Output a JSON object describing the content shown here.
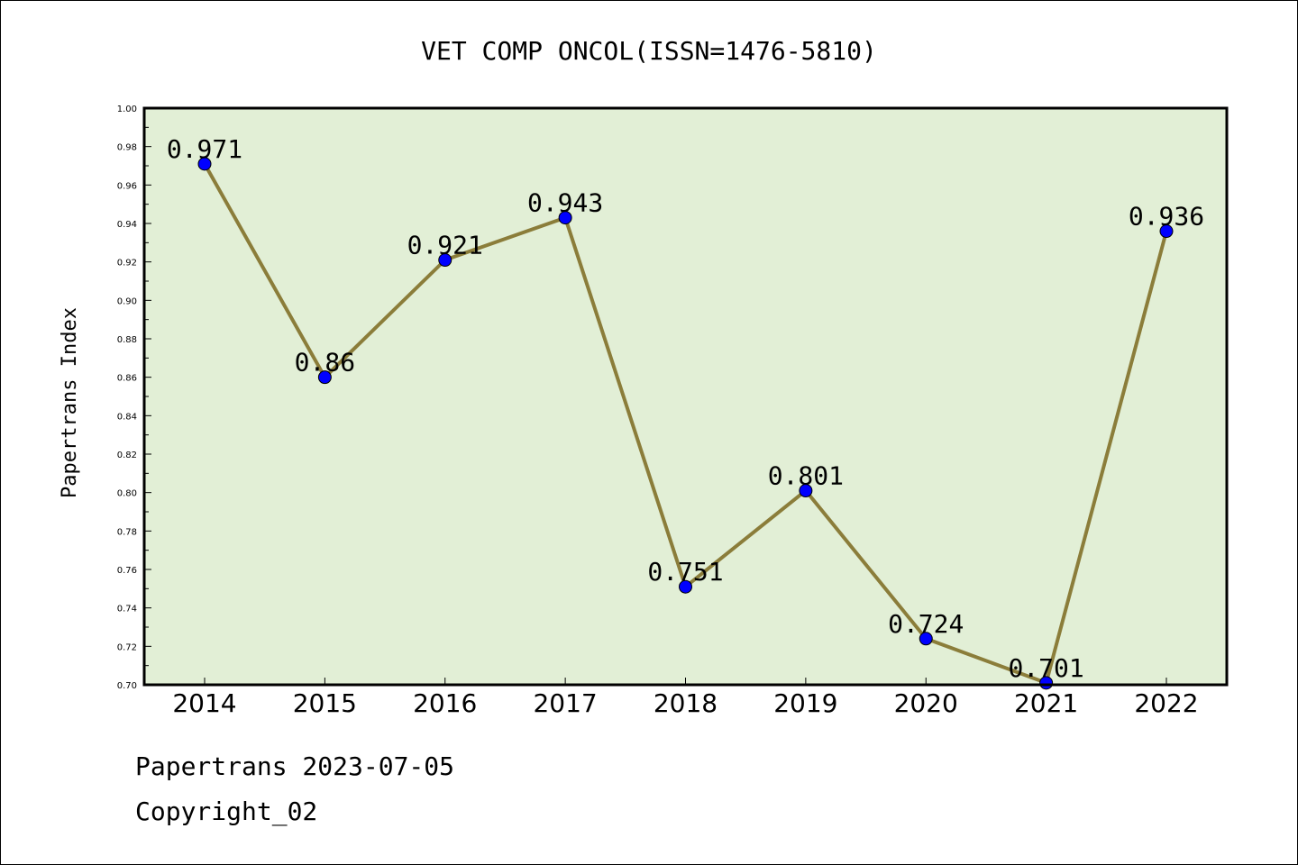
{
  "chart_data": {
    "type": "line",
    "title": "VET COMP ONCOL(ISSN=1476-5810)",
    "xlabel": "",
    "ylabel": "Papertrans Index",
    "categories": [
      "2014",
      "2015",
      "2016",
      "2017",
      "2018",
      "2019",
      "2020",
      "2021",
      "2022"
    ],
    "values": [
      0.971,
      0.86,
      0.921,
      0.943,
      0.751,
      0.801,
      0.724,
      0.701,
      0.936
    ],
    "data_labels": [
      "0.971",
      "0.86",
      "0.921",
      "0.943",
      "0.751",
      "0.801",
      "0.724",
      "0.701",
      "0.936"
    ],
    "ylim": [
      0.7,
      1.0
    ],
    "yticks": [
      "0.70",
      "0.72",
      "0.74",
      "0.76",
      "0.78",
      "0.80",
      "0.82",
      "0.84",
      "0.86",
      "0.88",
      "0.90",
      "0.92",
      "0.94",
      "0.96",
      "0.98",
      "1.00"
    ],
    "grid": false,
    "colors": {
      "plot_background": "#e2efd6",
      "line": "#8b7d3a",
      "marker": "#0000ff"
    }
  },
  "footer": {
    "line1": "Papertrans 2023-07-05",
    "line2": "Copyright_02"
  }
}
